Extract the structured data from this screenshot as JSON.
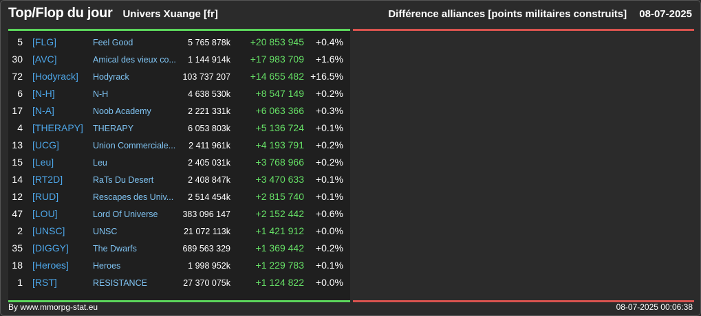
{
  "header": {
    "title": "Top/Flop du jour",
    "universe": "Univers Xuange [fr]",
    "subject": "Différence alliances [points militaires construits]",
    "date": "08-07-2025"
  },
  "colors": {
    "top_accent": "#5cd65c",
    "flop_accent": "#d9534f",
    "tag": "#4da6e8",
    "name": "#7fc3f2",
    "diff_positive": "#66e066"
  },
  "top_rows": [
    {
      "rank": "5",
      "tag": "[FLG]",
      "name": "Feel Good",
      "points": "5 765 878k",
      "diff": "+20 853 945",
      "pct": "+0.4%"
    },
    {
      "rank": "30",
      "tag": "[AVC]",
      "name": "Amical des vieux co...",
      "points": "1 144 914k",
      "diff": "+17 983 709",
      "pct": "+1.6%"
    },
    {
      "rank": "72",
      "tag": "[Hodyrack]",
      "name": "Hodyrack",
      "points": "103 737 207",
      "diff": "+14 655 482",
      "pct": "+16.5%"
    },
    {
      "rank": "6",
      "tag": "[N-H]",
      "name": "N-H",
      "points": "4 638 530k",
      "diff": "+8 547 149",
      "pct": "+0.2%"
    },
    {
      "rank": "17",
      "tag": "[N-A]",
      "name": "Noob Academy",
      "points": "2 221 331k",
      "diff": "+6 063 366",
      "pct": "+0.3%"
    },
    {
      "rank": "4",
      "tag": "[THERAPY]",
      "name": "THERAPY",
      "points": "6 053 803k",
      "diff": "+5 136 724",
      "pct": "+0.1%"
    },
    {
      "rank": "13",
      "tag": "[UCG]",
      "name": "Union Commerciale...",
      "points": "2 411 961k",
      "diff": "+4 193 791",
      "pct": "+0.2%"
    },
    {
      "rank": "15",
      "tag": "[Leu]",
      "name": "Leu",
      "points": "2 405 031k",
      "diff": "+3 768 966",
      "pct": "+0.2%"
    },
    {
      "rank": "14",
      "tag": "[RT2D]",
      "name": "RaTs Du Desert",
      "points": "2 408 847k",
      "diff": "+3 470 633",
      "pct": "+0.1%"
    },
    {
      "rank": "12",
      "tag": "[RUD]",
      "name": "Rescapes des Univ...",
      "points": "2 514 454k",
      "diff": "+2 815 740",
      "pct": "+0.1%"
    },
    {
      "rank": "47",
      "tag": "[LOU]",
      "name": "Lord Of Universe",
      "points": "383 096 147",
      "diff": "+2 152 442",
      "pct": "+0.6%"
    },
    {
      "rank": "2",
      "tag": "[UNSC]",
      "name": "UNSC",
      "points": "21 072 113k",
      "diff": "+1 421 912",
      "pct": "+0.0%"
    },
    {
      "rank": "35",
      "tag": "[DIGGY]",
      "name": "The Dwarfs",
      "points": "689 563 329",
      "diff": "+1 369 442",
      "pct": "+0.2%"
    },
    {
      "rank": "18",
      "tag": "[Heroes]",
      "name": "Heroes",
      "points": "1 998 952k",
      "diff": "+1 229 783",
      "pct": "+0.1%"
    },
    {
      "rank": "1",
      "tag": "[RST]",
      "name": "RESISTANCE",
      "points": "27 370 075k",
      "diff": "+1 124 822",
      "pct": "+0.0%"
    }
  ],
  "flop_rows": [],
  "footer": {
    "credit": "By www.mmorpg-stat.eu",
    "timestamp": "08-07-2025 00:06:38"
  }
}
